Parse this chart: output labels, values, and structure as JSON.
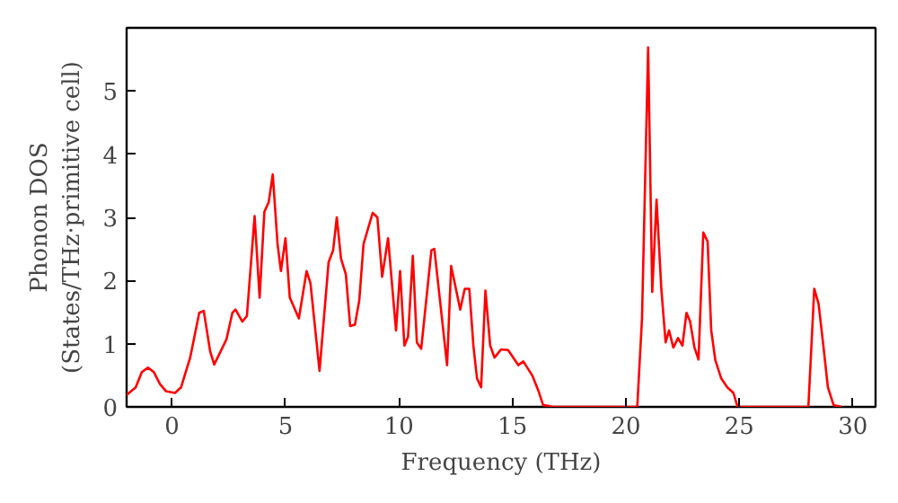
{
  "chart_data": {
    "type": "line",
    "xlabel": "Frequency (THz)",
    "ylabel": "Phonon DOS\n(States/THz·primitive cell)",
    "xlim": [
      -2,
      31
    ],
    "ylim": [
      0,
      6
    ],
    "xticks": [
      0,
      5,
      10,
      15,
      20,
      25,
      30
    ],
    "yticks": [
      0,
      1,
      2,
      3,
      4,
      5
    ],
    "grid": false,
    "series": [
      {
        "color": "#ff0000",
        "x": [
          -2.0,
          -1.6,
          -1.33,
          -1.06,
          -0.8,
          -0.53,
          -0.27,
          0.13,
          0.4,
          0.8,
          1.2,
          1.4,
          1.68,
          1.86,
          2.4,
          2.66,
          2.8,
          3.1,
          3.3,
          3.64,
          3.86,
          4.07,
          4.26,
          4.44,
          4.65,
          4.8,
          5.0,
          5.19,
          5.59,
          5.93,
          6.1,
          6.5,
          6.9,
          7.1,
          7.26,
          7.45,
          7.66,
          7.85,
          8.06,
          8.25,
          8.44,
          8.84,
          9.05,
          9.26,
          9.52,
          9.87,
          10.05,
          10.24,
          10.4,
          10.61,
          10.79,
          10.98,
          11.43,
          11.56,
          12.12,
          12.3,
          12.7,
          12.9,
          13.1,
          13.28,
          13.44,
          13.62,
          13.81,
          14.02,
          14.21,
          14.5,
          14.81,
          15.26,
          15.48,
          15.87,
          16.14,
          16.35,
          16.8,
          20.5,
          20.71,
          20.98,
          21.16,
          21.35,
          21.56,
          21.75,
          21.9,
          22.09,
          22.3,
          22.49,
          22.67,
          22.83,
          23.02,
          23.2,
          23.41,
          23.6,
          23.76,
          23.94,
          24.2,
          24.47,
          24.74,
          24.92,
          28.04,
          28.3,
          28.49,
          28.7,
          28.9,
          29.15,
          29.5
        ],
        "values": [
          0.19,
          0.31,
          0.55,
          0.62,
          0.55,
          0.36,
          0.25,
          0.22,
          0.31,
          0.78,
          1.49,
          1.52,
          0.88,
          0.67,
          1.07,
          1.49,
          1.54,
          1.35,
          1.44,
          3.02,
          1.73,
          3.09,
          3.24,
          3.68,
          2.58,
          2.15,
          2.67,
          1.73,
          1.4,
          2.15,
          1.96,
          0.57,
          2.29,
          2.48,
          3.0,
          2.34,
          2.1,
          1.28,
          1.3,
          1.68,
          2.58,
          3.07,
          3.0,
          2.06,
          2.67,
          1.21,
          2.15,
          0.97,
          1.11,
          2.39,
          1.02,
          0.92,
          2.48,
          2.5,
          0.66,
          2.23,
          1.54,
          1.87,
          1.87,
          0.97,
          0.45,
          0.31,
          1.84,
          0.97,
          0.78,
          0.91,
          0.9,
          0.66,
          0.72,
          0.5,
          0.26,
          0.03,
          0,
          0,
          1.4,
          5.69,
          1.82,
          3.28,
          1.87,
          1.02,
          1.21,
          0.94,
          1.09,
          0.97,
          1.49,
          1.35,
          0.94,
          0.75,
          2.76,
          2.62,
          1.21,
          0.74,
          0.45,
          0.31,
          0.22,
          0,
          0,
          1.87,
          1.63,
          0.97,
          0.31,
          0.03,
          0
        ]
      }
    ]
  }
}
